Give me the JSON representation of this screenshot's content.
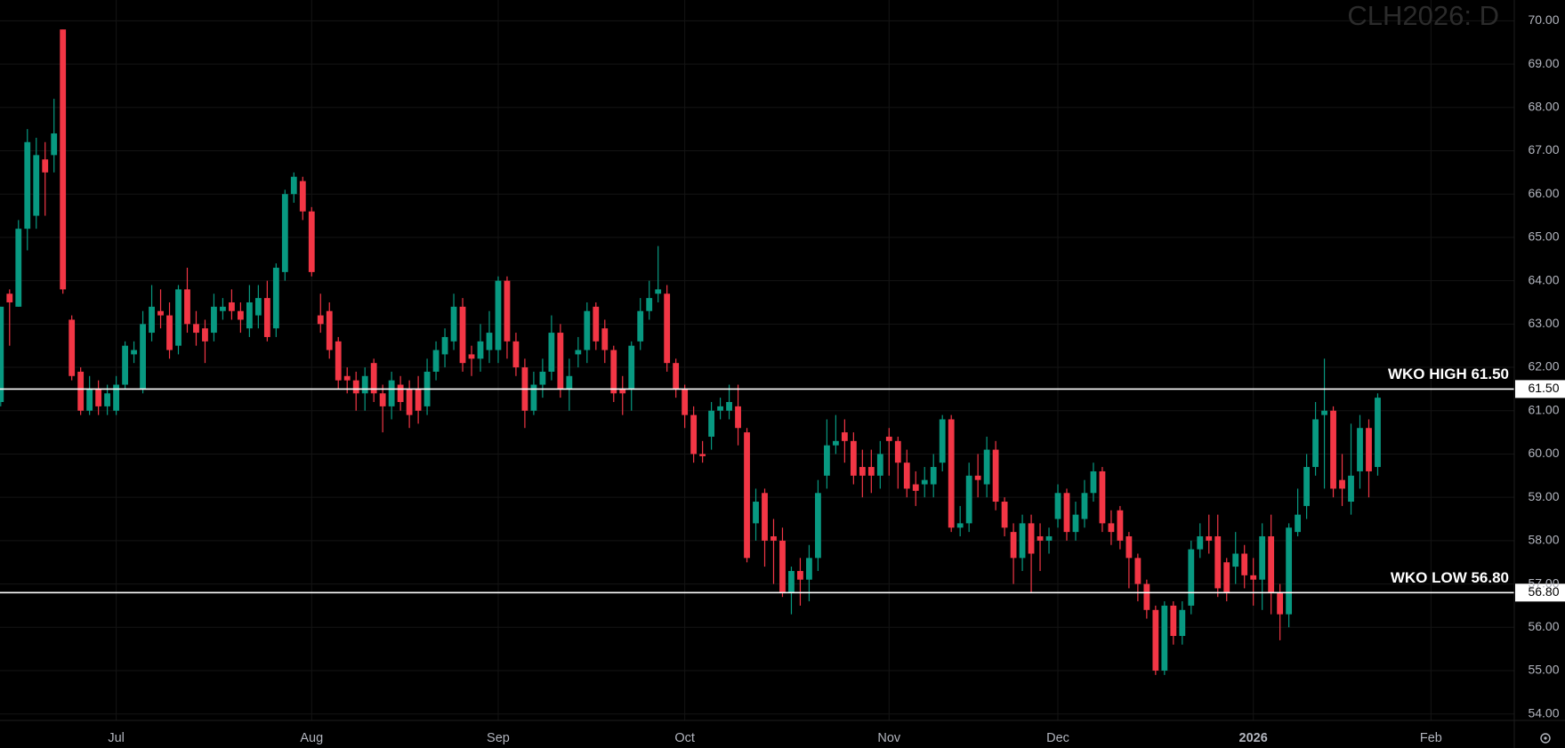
{
  "chart_data": {
    "type": "candlestick",
    "watermark": "CLH2026: D",
    "categories": [
      null,
      null,
      null,
      null,
      null,
      null,
      null,
      null,
      null,
      null,
      null,
      null,
      null,
      "Jul",
      null,
      null,
      null,
      null,
      null,
      null,
      null,
      null,
      null,
      null,
      null,
      null,
      null,
      null,
      null,
      null,
      null,
      null,
      null,
      null,
      null,
      "Aug",
      null,
      null,
      null,
      null,
      null,
      null,
      null,
      null,
      null,
      null,
      null,
      null,
      null,
      null,
      null,
      null,
      null,
      null,
      null,
      null,
      "Sep",
      null,
      null,
      null,
      null,
      null,
      null,
      null,
      null,
      null,
      null,
      null,
      null,
      null,
      null,
      null,
      null,
      null,
      null,
      null,
      null,
      "Oct",
      null,
      null,
      null,
      null,
      null,
      null,
      null,
      null,
      null,
      null,
      null,
      null,
      null,
      null,
      null,
      null,
      null,
      null,
      null,
      null,
      null,
      null,
      "Nov",
      null,
      null,
      null,
      null,
      null,
      null,
      null,
      null,
      null,
      null,
      null,
      null,
      null,
      null,
      null,
      null,
      null,
      null,
      "Dec",
      null,
      null,
      null,
      null,
      null,
      null,
      null,
      null,
      null,
      null,
      null,
      null,
      null,
      null,
      null,
      null,
      null,
      null,
      null,
      null,
      null,
      "2026",
      null,
      null,
      null,
      null,
      null,
      null,
      null,
      null,
      null,
      null,
      null,
      null,
      null,
      null,
      null,
      null,
      null,
      null,
      null,
      "Feb"
    ],
    "open": [
      61.2,
      63.7,
      63.4,
      65.2,
      65.5,
      66.8,
      66.9,
      69.8,
      63.1,
      61.9,
      61.0,
      61.5,
      61.1,
      61.0,
      61.6,
      62.3,
      61.5,
      62.8,
      63.3,
      63.2,
      62.5,
      63.8,
      63.0,
      62.9,
      62.8,
      63.3,
      63.5,
      63.3,
      62.9,
      63.2,
      63.6,
      62.9,
      64.2,
      66.0,
      66.3,
      65.6,
      63.2,
      63.3,
      62.6,
      61.8,
      61.7,
      61.4,
      62.1,
      61.4,
      61.1,
      61.6,
      61.5,
      61.5,
      61.1,
      61.9,
      62.3,
      62.6,
      63.4,
      62.3,
      62.2,
      62.4,
      62.4,
      64.0,
      62.6,
      62.0,
      61.0,
      61.6,
      61.9,
      62.8,
      61.5,
      62.3,
      62.4,
      63.4,
      62.9,
      62.4,
      61.5,
      61.5,
      62.6,
      63.3,
      63.7,
      63.7,
      62.1,
      61.5,
      60.9,
      60.0,
      60.4,
      61.0,
      61.0,
      61.1,
      60.5,
      58.4,
      59.1,
      58.1,
      58.0,
      56.8,
      57.3,
      57.1,
      57.6,
      59.5,
      60.2,
      60.5,
      60.3,
      59.7,
      59.7,
      59.5,
      60.4,
      60.3,
      59.8,
      59.3,
      59.3,
      59.3,
      59.8,
      60.8,
      58.3,
      58.4,
      59.5,
      59.3,
      60.1,
      58.9,
      58.2,
      57.6,
      58.4,
      58.1,
      58.0,
      58.5,
      59.1,
      58.2,
      58.5,
      59.1,
      59.6,
      58.4,
      58.7,
      58.1,
      57.6,
      57.0,
      56.4,
      55.0,
      56.5,
      55.8,
      56.5,
      57.8,
      58.1,
      58.1,
      57.5,
      57.4,
      57.7,
      57.2,
      57.1,
      58.1,
      56.8,
      56.3,
      58.2,
      58.8,
      59.7,
      60.9,
      61.0,
      59.4,
      58.9,
      59.6,
      60.6,
      59.7,
      null,
      null,
      null,
      null,
      null,
      null
    ],
    "high": [
      63.4,
      63.8,
      65.4,
      67.5,
      67.3,
      67.2,
      68.2,
      69.8,
      63.2,
      62.0,
      61.8,
      61.7,
      61.6,
      61.8,
      62.6,
      62.6,
      63.3,
      63.9,
      63.8,
      63.5,
      63.9,
      64.3,
      63.3,
      63.1,
      63.7,
      63.6,
      63.8,
      63.5,
      63.9,
      63.9,
      64.0,
      64.4,
      66.1,
      66.5,
      66.4,
      65.7,
      63.7,
      63.5,
      62.7,
      62.0,
      61.9,
      62.0,
      62.2,
      61.6,
      61.9,
      61.8,
      61.7,
      61.8,
      62.2,
      62.6,
      62.9,
      63.7,
      63.6,
      62.5,
      63.0,
      63.3,
      64.1,
      64.1,
      62.8,
      62.2,
      61.9,
      62.2,
      63.2,
      63.0,
      62.2,
      62.7,
      63.5,
      63.5,
      63.1,
      62.5,
      61.8,
      62.6,
      63.6,
      64.0,
      64.8,
      63.9,
      62.2,
      61.6,
      61.1,
      60.3,
      61.2,
      61.3,
      61.6,
      61.6,
      60.6,
      59.2,
      59.2,
      58.5,
      58.3,
      57.4,
      57.6,
      57.9,
      59.4,
      60.8,
      60.9,
      60.8,
      60.5,
      60.1,
      60.1,
      60.3,
      60.6,
      60.4,
      60.1,
      59.6,
      59.7,
      60.0,
      60.9,
      60.9,
      58.8,
      59.8,
      60.0,
      60.4,
      60.3,
      59.0,
      58.4,
      58.6,
      58.6,
      58.4,
      58.3,
      59.3,
      59.2,
      58.9,
      59.4,
      59.8,
      59.7,
      58.7,
      58.8,
      58.2,
      57.7,
      57.1,
      56.5,
      56.6,
      56.6,
      56.6,
      58.0,
      58.4,
      58.6,
      58.6,
      57.6,
      58.2,
      57.9,
      57.6,
      58.4,
      58.6,
      57.0,
      58.4,
      59.2,
      60.0,
      61.2,
      62.2,
      61.1,
      60.0,
      60.7,
      60.9,
      60.8,
      61.4,
      null,
      null,
      null,
      null,
      null,
      null
    ],
    "low": [
      61.1,
      62.5,
      63.4,
      64.7,
      65.2,
      65.5,
      66.5,
      63.7,
      61.7,
      60.9,
      60.9,
      60.9,
      60.9,
      60.9,
      61.5,
      62.1,
      61.4,
      62.6,
      62.9,
      62.2,
      62.3,
      62.8,
      62.5,
      62.1,
      62.6,
      63.1,
      63.1,
      62.8,
      62.7,
      62.9,
      62.6,
      62.7,
      64.0,
      65.8,
      65.4,
      64.1,
      62.8,
      62.2,
      61.5,
      61.4,
      61.0,
      61.0,
      61.2,
      60.5,
      60.8,
      61.0,
      60.6,
      60.7,
      60.9,
      61.7,
      62.0,
      62.4,
      61.9,
      61.8,
      61.9,
      62.1,
      62.1,
      62.2,
      61.8,
      60.6,
      60.9,
      61.3,
      61.7,
      61.3,
      61.0,
      62.0,
      62.1,
      62.4,
      62.1,
      61.2,
      60.9,
      61.0,
      62.4,
      63.1,
      63.5,
      61.9,
      61.3,
      60.6,
      59.8,
      59.8,
      60.1,
      60.8,
      60.8,
      60.2,
      57.5,
      58.0,
      57.4,
      57.0,
      56.7,
      56.3,
      56.5,
      56.6,
      57.3,
      59.2,
      60.0,
      59.8,
      59.3,
      59.0,
      59.1,
      59.2,
      59.5,
      59.2,
      59.0,
      58.8,
      59.0,
      59.0,
      59.6,
      58.2,
      58.1,
      58.2,
      59.0,
      59.0,
      58.7,
      58.1,
      57.0,
      57.3,
      56.8,
      57.3,
      57.7,
      58.3,
      58.0,
      58.0,
      58.3,
      58.9,
      58.2,
      57.9,
      57.8,
      56.9,
      56.6,
      56.2,
      54.9,
      54.9,
      55.6,
      55.6,
      56.3,
      57.6,
      57.7,
      56.7,
      56.6,
      57.0,
      56.9,
      56.5,
      56.4,
      56.3,
      55.7,
      56.0,
      58.1,
      58.5,
      59.5,
      59.2,
      59.0,
      58.8,
      58.6,
      59.2,
      59.0,
      59.5,
      null,
      null,
      null,
      null,
      null,
      null
    ],
    "close": [
      63.4,
      63.5,
      65.2,
      67.2,
      66.9,
      66.5,
      67.4,
      63.8,
      61.8,
      61.0,
      61.5,
      61.1,
      61.4,
      61.6,
      62.5,
      62.4,
      63.0,
      63.4,
      63.2,
      62.4,
      63.8,
      63.0,
      62.8,
      62.6,
      63.4,
      63.4,
      63.3,
      63.1,
      63.5,
      63.6,
      62.7,
      64.3,
      66.0,
      66.4,
      65.6,
      64.2,
      63.0,
      62.4,
      61.7,
      61.7,
      61.4,
      61.8,
      61.4,
      61.1,
      61.7,
      61.2,
      60.9,
      61.0,
      61.9,
      62.4,
      62.7,
      63.4,
      62.1,
      62.2,
      62.6,
      62.8,
      64.0,
      62.6,
      62.0,
      61.0,
      61.6,
      61.9,
      62.8,
      61.5,
      61.8,
      62.4,
      63.3,
      62.6,
      62.4,
      61.4,
      61.4,
      62.5,
      63.3,
      63.6,
      63.8,
      62.1,
      61.5,
      60.9,
      60.0,
      59.95,
      61.0,
      61.1,
      61.2,
      60.6,
      57.6,
      58.9,
      58.0,
      58.0,
      56.8,
      57.3,
      57.1,
      57.6,
      59.1,
      60.2,
      60.3,
      60.3,
      59.5,
      59.5,
      59.5,
      60.0,
      60.3,
      59.8,
      59.2,
      59.15,
      59.4,
      59.7,
      60.8,
      58.3,
      58.4,
      59.5,
      59.4,
      60.1,
      58.9,
      58.3,
      57.6,
      58.4,
      57.7,
      58.0,
      58.1,
      59.1,
      58.2,
      58.6,
      59.1,
      59.6,
      58.4,
      58.2,
      58.0,
      57.6,
      57.0,
      56.4,
      55.0,
      56.5,
      55.8,
      56.4,
      57.8,
      58.1,
      58.0,
      56.9,
      56.8,
      57.7,
      57.2,
      57.1,
      58.1,
      56.8,
      56.3,
      58.3,
      58.6,
      59.7,
      60.8,
      61.0,
      59.2,
      59.2,
      59.5,
      60.6,
      59.6,
      61.3,
      null,
      null,
      null,
      null,
      null,
      null
    ],
    "up_color": "#089981",
    "down_color": "#f23645",
    "ylim": [
      53.85,
      70.48
    ],
    "yticks": [
      {
        "value": 54,
        "label": "54.00"
      },
      {
        "value": 55,
        "label": "55.00"
      },
      {
        "value": 56,
        "label": "56.00"
      },
      {
        "value": 57,
        "label": "57.00"
      },
      {
        "value": 58,
        "label": "58.00"
      },
      {
        "value": 59,
        "label": "59.00"
      },
      {
        "value": 60,
        "label": "60.00"
      },
      {
        "value": 61,
        "label": "61.00"
      },
      {
        "value": 62,
        "label": "62.00"
      },
      {
        "value": 63,
        "label": "63.00"
      },
      {
        "value": 64,
        "label": "64.00"
      },
      {
        "value": 65,
        "label": "65.00"
      },
      {
        "value": 66,
        "label": "66.00"
      },
      {
        "value": 67,
        "label": "67.00"
      },
      {
        "value": 68,
        "label": "68.00"
      },
      {
        "value": 69,
        "label": "69.00"
      },
      {
        "value": 70,
        "label": "70.00"
      }
    ],
    "grid": true,
    "hlines": [
      {
        "label": "WKO HIGH 61.50",
        "value": 61.5,
        "value_label": "61.50"
      },
      {
        "label": "WKO LOW 56.80",
        "value": 56.8,
        "value_label": "56.80"
      }
    ]
  }
}
